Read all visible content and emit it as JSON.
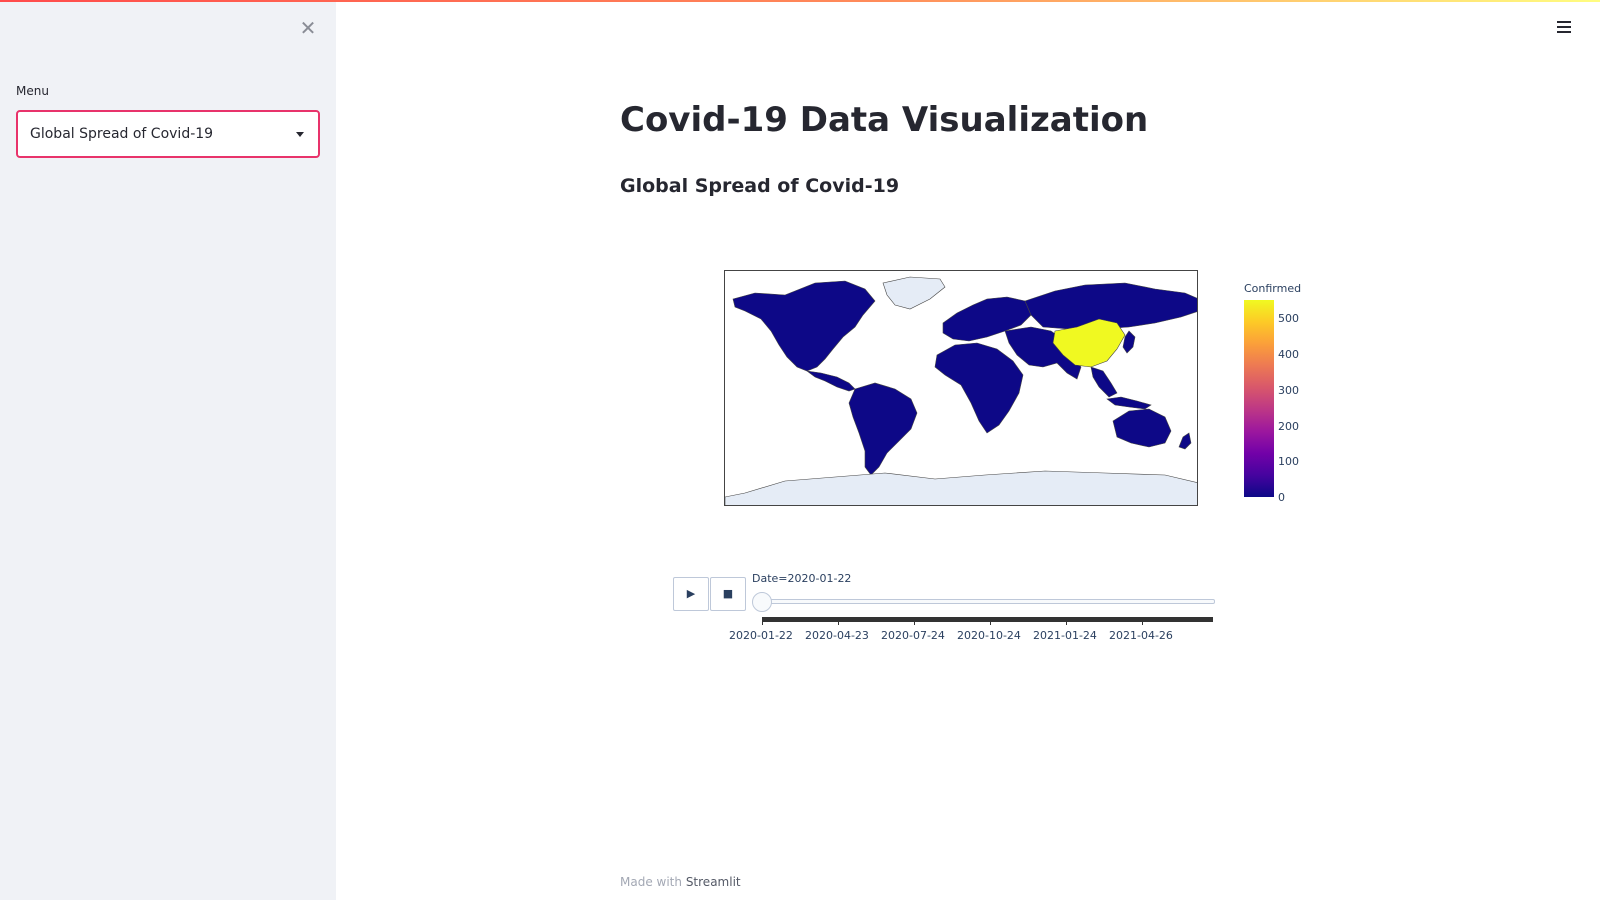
{
  "sidebar": {
    "close_symbol": "✕",
    "menu_label": "Menu",
    "selected_option": "Global Spread of Covid-19"
  },
  "header": {
    "menu_icon": "hamburger-icon"
  },
  "main": {
    "title": "Covid-19 Data Visualization",
    "subheader": "Global Spread of Covid-19"
  },
  "figure": {
    "colorbar_title": "Confirmed",
    "colorbar_ticks": [
      "500",
      "400",
      "300",
      "200",
      "100",
      "0"
    ],
    "highlight_color": "#f0f921",
    "base_color": "#0d0887",
    "no_data_color": "#e5ecf6",
    "play_symbol": "▶",
    "stop_symbol": "■",
    "slider_label": "Date=2020-01-22",
    "slider_position_fraction": 0,
    "tick_labels": [
      "2020-01-22",
      "2020-04-23",
      "2020-07-24",
      "2020-10-24",
      "2021-01-24",
      "2021-04-26"
    ]
  },
  "footer": {
    "prefix": "Made with",
    "link": "Streamlit"
  }
}
